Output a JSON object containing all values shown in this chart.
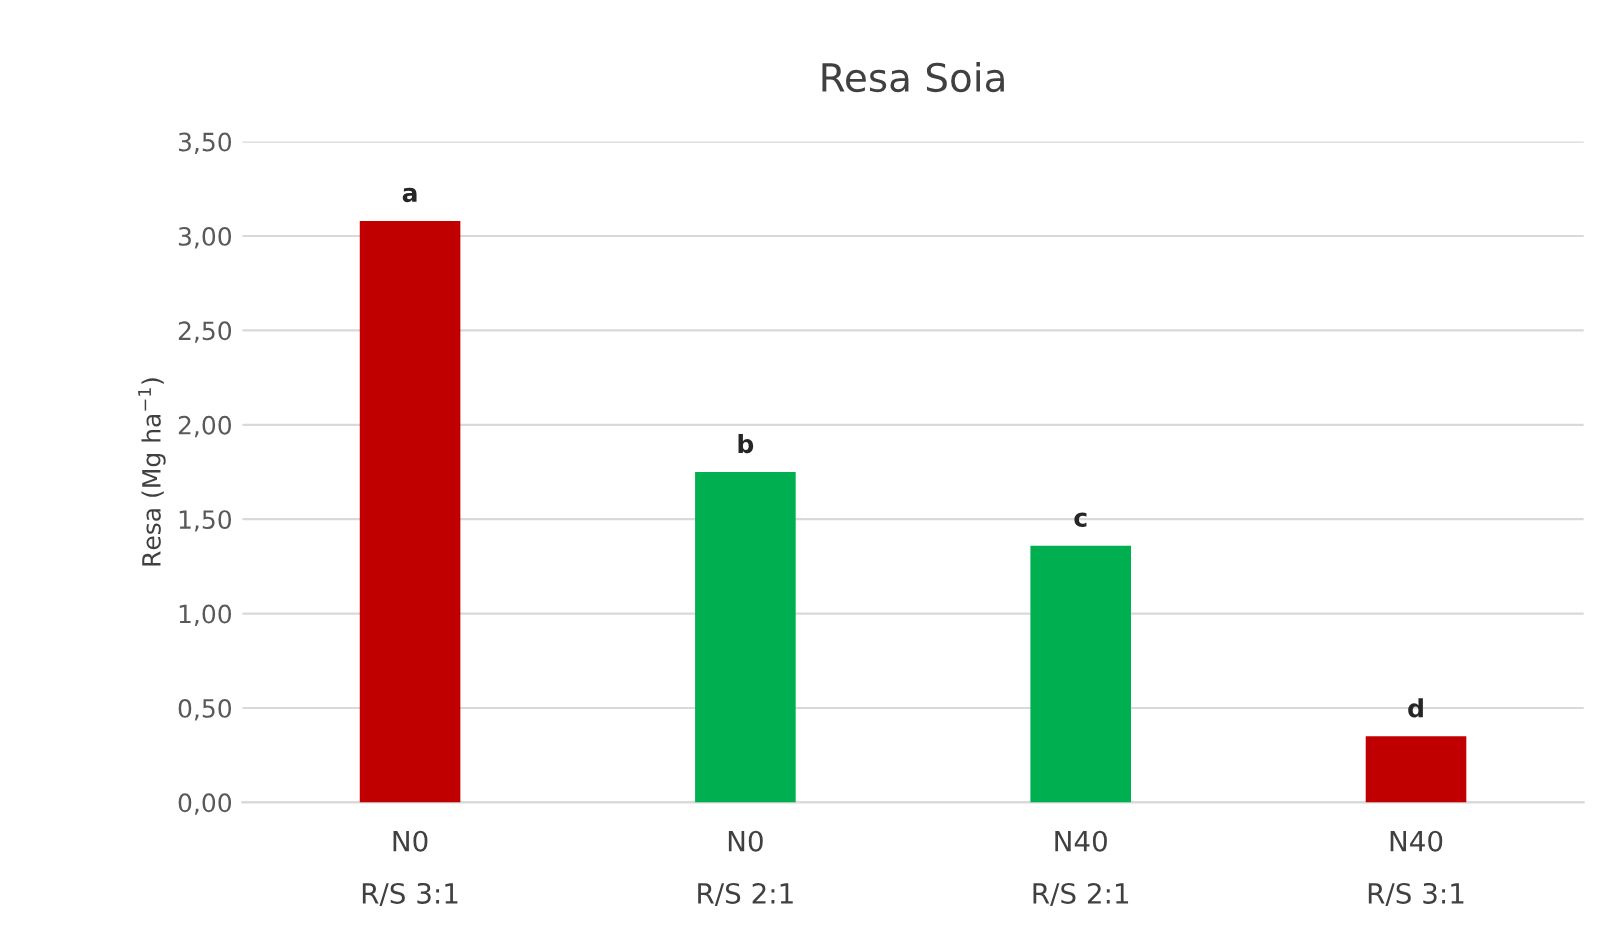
{
  "chart_data": {
    "type": "bar",
    "title": "Resa Soia",
    "ylabel": "Resa (Mg ha$^{−1}$)",
    "categories": [
      "N0\nR/S 3:1",
      "N0\nR/S 2:1",
      "N40\nR/S 2:1",
      "N40\nR/S 3:1"
    ],
    "values": [
      3.08,
      1.75,
      1.36,
      0.35
    ],
    "colors": [
      "#c00000",
      "#00b050",
      "#00b050",
      "#c00000"
    ],
    "ylim": [
      0,
      3.5
    ],
    "yticks": [
      {
        "value": 0,
        "label": "0,00"
      },
      {
        "value": 0.5,
        "label": "0,50"
      },
      {
        "value": 1.0,
        "label": "1,00"
      },
      {
        "value": 1.5,
        "label": "1,50"
      },
      {
        "value": 2.0,
        "label": "2,00"
      },
      {
        "value": 2.5,
        "label": "2,50"
      },
      {
        "value": 3.0,
        "label": "3,00"
      },
      {
        "value": 3.5,
        "label": "3,50"
      }
    ],
    "grid": "y",
    "annotations": [
      {
        "text": "a",
        "x": "N0\nR/S 3:1",
        "y": 3.08
      },
      {
        "text": "b",
        "x": "N0\nR/S 2:1",
        "y": 1.75
      },
      {
        "text": "c",
        "x": "N40\nR/S 2:1",
        "y": 1.36
      },
      {
        "text": "d",
        "x": "N40\nR/S 3:1",
        "y": 0.35
      }
    ]
  }
}
